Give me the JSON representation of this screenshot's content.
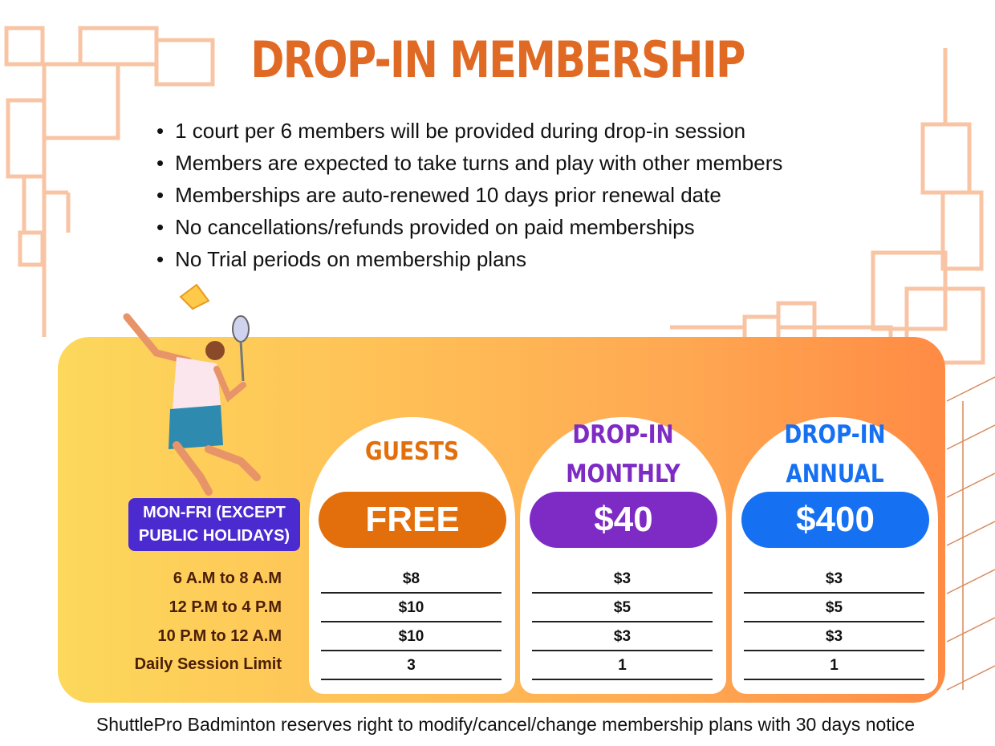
{
  "title": "DROP-IN MEMBERSHIP",
  "rules": [
    "1 court per 6 members will be provided during drop-in session",
    "Members are expected to take turns and play with other members",
    "Memberships are auto-renewed 10 days prior renewal date",
    "No cancellations/refunds provided on paid memberships",
    "No Trial periods on membership plans"
  ],
  "schedule_tag": {
    "line1": "MON-FRI (EXCEPT",
    "line2": "PUBLIC HOLIDAYS)"
  },
  "row_labels": [
    "6 A.M to 8 A.M",
    "12 P.M to 4 P.M",
    "10 P.M to 12 A.M",
    "Daily Session Limit"
  ],
  "plans": [
    {
      "line1": "GUESTS",
      "line2": "",
      "price": "FREE",
      "color": "#e36f0c",
      "values": [
        "$8",
        "$10",
        "$10",
        "3"
      ]
    },
    {
      "line1": "DROP-IN",
      "line2": "MONTHLY",
      "price": "$40",
      "color": "#7e2ac4",
      "values": [
        "$3",
        "$5",
        "$3",
        "1"
      ]
    },
    {
      "line1": "DROP-IN",
      "line2": "ANNUAL",
      "price": "$400",
      "color": "#1670f2",
      "values": [
        "$3",
        "$5",
        "$3",
        "1"
      ]
    }
  ],
  "footer": "ShuttlePro Badminton reserves right to modify/cancel/change membership plans with 30 days notice",
  "colors": {
    "title": "#e06a24",
    "tag": "#4b2ad0",
    "decor": "#f8c4a4"
  }
}
